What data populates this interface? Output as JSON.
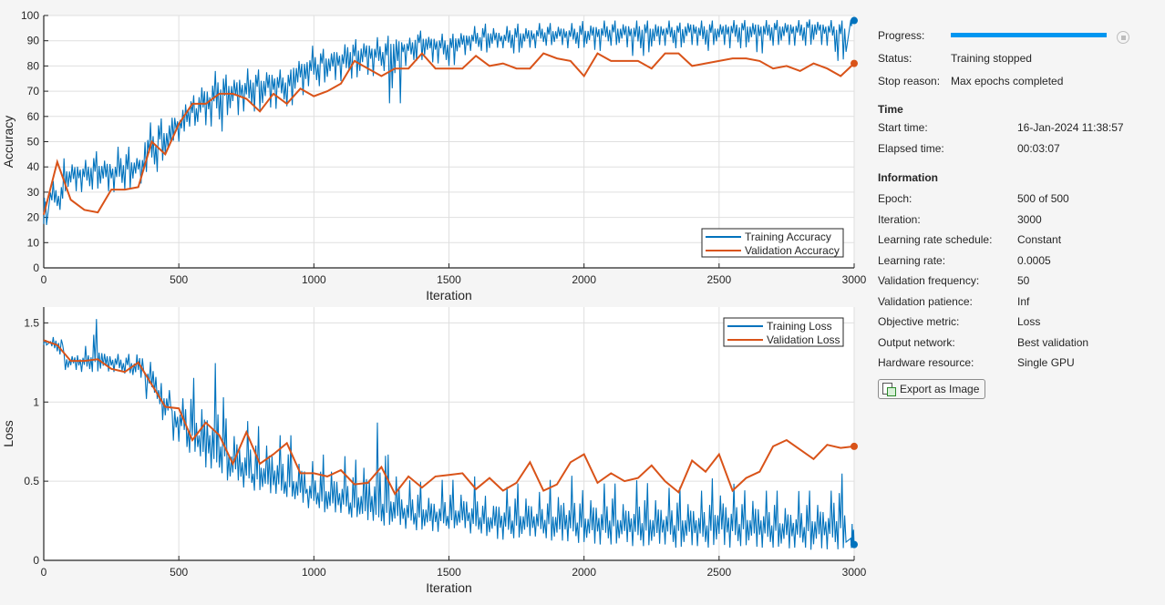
{
  "colors": {
    "training": "#0072bd",
    "validation": "#d95319",
    "progress": "#0096f0",
    "grid": "#dfdfdf"
  },
  "chart_data": [
    {
      "type": "line",
      "xlabel": "Iteration",
      "ylabel": "Accuracy",
      "xlim": [
        0,
        3000
      ],
      "ylim": [
        0,
        100
      ],
      "xticks": [
        "0",
        "500",
        "1000",
        "1500",
        "2000",
        "2500",
        "3000"
      ],
      "yticks": [
        "0",
        "10",
        "20",
        "30",
        "40",
        "50",
        "60",
        "70",
        "80",
        "90",
        "100"
      ],
      "grid": true,
      "legend_position": "bottom-right",
      "series": [
        {
          "name": "Training Accuracy",
          "x_step": 50,
          "values": [
            25,
            28,
            37,
            38,
            39,
            38,
            40,
            41,
            48,
            52,
            57,
            62,
            66,
            70,
            71,
            71,
            73,
            74,
            73,
            78,
            80,
            82,
            83,
            85,
            86,
            85,
            88,
            88,
            90,
            89,
            88,
            90,
            91,
            92,
            91,
            92,
            92,
            93,
            93,
            93,
            93,
            94,
            94,
            94,
            94,
            94,
            94,
            94,
            95,
            94,
            94,
            95,
            95,
            95,
            95,
            95,
            95,
            96,
            95,
            94,
            98
          ],
          "min": [
            17,
            23,
            30,
            30,
            31,
            30,
            31,
            33,
            38,
            42,
            50,
            56,
            56,
            54,
            60,
            62,
            62,
            63,
            64,
            68,
            72,
            73,
            74,
            75,
            76,
            78,
            64,
            80,
            82,
            81,
            80,
            84,
            86,
            85,
            87,
            85,
            87,
            88,
            88,
            87,
            87,
            86,
            88,
            87,
            84,
            85,
            88,
            87,
            88,
            86,
            88,
            87,
            87,
            85,
            88,
            88,
            88,
            88,
            88,
            82,
            93
          ],
          "max": [
            33,
            36,
            45,
            44,
            48,
            47,
            50,
            46,
            60,
            61,
            64,
            70,
            77,
            80,
            78,
            81,
            80,
            81,
            80,
            86,
            90,
            88,
            90,
            92,
            92,
            93,
            93,
            92,
            95,
            94,
            94,
            96,
            97,
            98,
            97,
            98,
            98,
            98,
            98,
            98,
            99,
            98,
            99,
            99,
            99,
            99,
            99,
            98,
            99,
            99,
            99,
            99,
            99,
            99,
            99,
            99,
            99,
            99,
            99,
            99,
            99
          ]
        },
        {
          "name": "Validation Accuracy",
          "x_step": 50,
          "values": [
            21,
            42,
            27,
            23,
            22,
            31,
            31,
            32,
            50,
            45,
            57,
            65,
            65,
            69,
            69,
            67,
            62,
            69,
            65,
            71,
            68,
            70,
            73,
            82,
            79,
            76,
            79,
            79,
            85,
            79,
            79,
            79,
            84,
            80,
            81,
            79,
            79,
            85,
            83,
            82,
            76,
            85,
            82,
            82,
            82,
            79,
            85,
            85,
            80,
            81,
            82,
            83,
            83,
            82,
            79,
            80,
            78,
            81,
            79,
            76,
            81
          ]
        }
      ]
    },
    {
      "type": "line",
      "xlabel": "Iteration",
      "ylabel": "Loss",
      "xlim": [
        0,
        3000
      ],
      "ylim": [
        0,
        1.6
      ],
      "xticks": [
        "0",
        "500",
        "1000",
        "1500",
        "2000",
        "2500",
        "3000"
      ],
      "yticks": [
        "0",
        "0.5",
        "1",
        "1.5"
      ],
      "ytick_values": [
        0,
        0.5,
        1,
        1.5
      ],
      "grid": true,
      "legend_position": "top-right",
      "series": [
        {
          "name": "Training Loss",
          "x_step": 50,
          "values": [
            1.39,
            1.37,
            1.26,
            1.25,
            1.26,
            1.25,
            1.24,
            1.22,
            1.15,
            1.0,
            0.88,
            0.8,
            0.72,
            0.67,
            0.6,
            0.56,
            0.52,
            0.5,
            0.47,
            0.45,
            0.41,
            0.38,
            0.37,
            0.34,
            0.33,
            0.31,
            0.3,
            0.29,
            0.28,
            0.27,
            0.26,
            0.27,
            0.25,
            0.24,
            0.24,
            0.23,
            0.23,
            0.24,
            0.22,
            0.23,
            0.22,
            0.22,
            0.23,
            0.21,
            0.21,
            0.2,
            0.21,
            0.2,
            0.21,
            0.2,
            0.23,
            0.22,
            0.21,
            0.2,
            0.2,
            0.19,
            0.19,
            0.2,
            0.2,
            0.22,
            0.1
          ],
          "min": [
            1.36,
            1.3,
            1.2,
            1.19,
            1.19,
            1.19,
            1.18,
            1.15,
            1.02,
            0.88,
            0.75,
            0.68,
            0.58,
            0.55,
            0.5,
            0.46,
            0.44,
            0.42,
            0.4,
            0.36,
            0.33,
            0.3,
            0.3,
            0.27,
            0.25,
            0.22,
            0.22,
            0.2,
            0.19,
            0.18,
            0.2,
            0.2,
            0.17,
            0.15,
            0.13,
            0.14,
            0.15,
            0.14,
            0.12,
            0.12,
            0.11,
            0.1,
            0.1,
            0.11,
            0.09,
            0.09,
            0.1,
            0.08,
            0.09,
            0.08,
            0.09,
            0.08,
            0.09,
            0.08,
            0.08,
            0.07,
            0.08,
            0.06,
            0.07,
            0.07,
            0.05
          ],
          "max": [
            1.4,
            1.42,
            1.32,
            1.38,
            1.59,
            1.36,
            1.32,
            1.38,
            1.28,
            1.15,
            1.06,
            1.24,
            1.19,
            1.39,
            0.97,
            0.96,
            0.93,
            0.95,
            0.87,
            0.77,
            0.68,
            0.74,
            0.73,
            0.71,
            0.84,
            1.01,
            0.76,
            0.56,
            0.55,
            0.52,
            0.57,
            0.56,
            0.6,
            0.45,
            0.52,
            0.55,
            0.55,
            0.48,
            0.58,
            0.61,
            0.5,
            0.54,
            0.55,
            0.5,
            0.58,
            0.56,
            0.52,
            0.53,
            0.5,
            0.5,
            0.59,
            0.55,
            0.5,
            0.55,
            0.5,
            0.47,
            0.5,
            0.5,
            0.5,
            0.63,
            0.36
          ]
        },
        {
          "name": "Validation Loss",
          "x_step": 50,
          "values": [
            1.39,
            1.36,
            1.26,
            1.26,
            1.27,
            1.21,
            1.19,
            1.25,
            1.11,
            0.97,
            0.96,
            0.76,
            0.87,
            0.79,
            0.61,
            0.81,
            0.61,
            0.67,
            0.74,
            0.55,
            0.55,
            0.53,
            0.57,
            0.48,
            0.49,
            0.59,
            0.42,
            0.53,
            0.46,
            0.53,
            0.54,
            0.55,
            0.45,
            0.52,
            0.44,
            0.49,
            0.62,
            0.44,
            0.48,
            0.62,
            0.67,
            0.49,
            0.55,
            0.5,
            0.52,
            0.6,
            0.5,
            0.43,
            0.63,
            0.56,
            0.67,
            0.44,
            0.52,
            0.56,
            0.72,
            0.76,
            0.7,
            0.64,
            0.73,
            0.71,
            0.72
          ]
        }
      ]
    }
  ],
  "panel": {
    "progress_label": "Progress:",
    "progress_value": 1.0,
    "status_label": "Status:",
    "status_value": "Training stopped",
    "stop_reason_label": "Stop reason:",
    "stop_reason_value": "Max epochs completed",
    "time_header": "Time",
    "start_time_label": "Start time:",
    "start_time_value": "16-Jan-2024 11:38:57",
    "elapsed_label": "Elapsed time:",
    "elapsed_value": "00:03:07",
    "info_header": "Information",
    "info": [
      {
        "label": "Epoch:",
        "value": "500 of 500"
      },
      {
        "label": "Iteration:",
        "value": "3000"
      },
      {
        "label": "Learning rate schedule:",
        "value": "Constant"
      },
      {
        "label": "Learning rate:",
        "value": "0.0005"
      },
      {
        "label": "Validation frequency:",
        "value": "50"
      },
      {
        "label": "Validation patience:",
        "value": "Inf"
      },
      {
        "label": "Objective metric:",
        "value": "Loss"
      },
      {
        "label": "Output network:",
        "value": "Best validation"
      },
      {
        "label": "Hardware resource:",
        "value": "Single GPU"
      }
    ],
    "export_label": "Export as Image",
    "export_icon": "export-image-icon",
    "stop_icon": "stop-icon"
  }
}
